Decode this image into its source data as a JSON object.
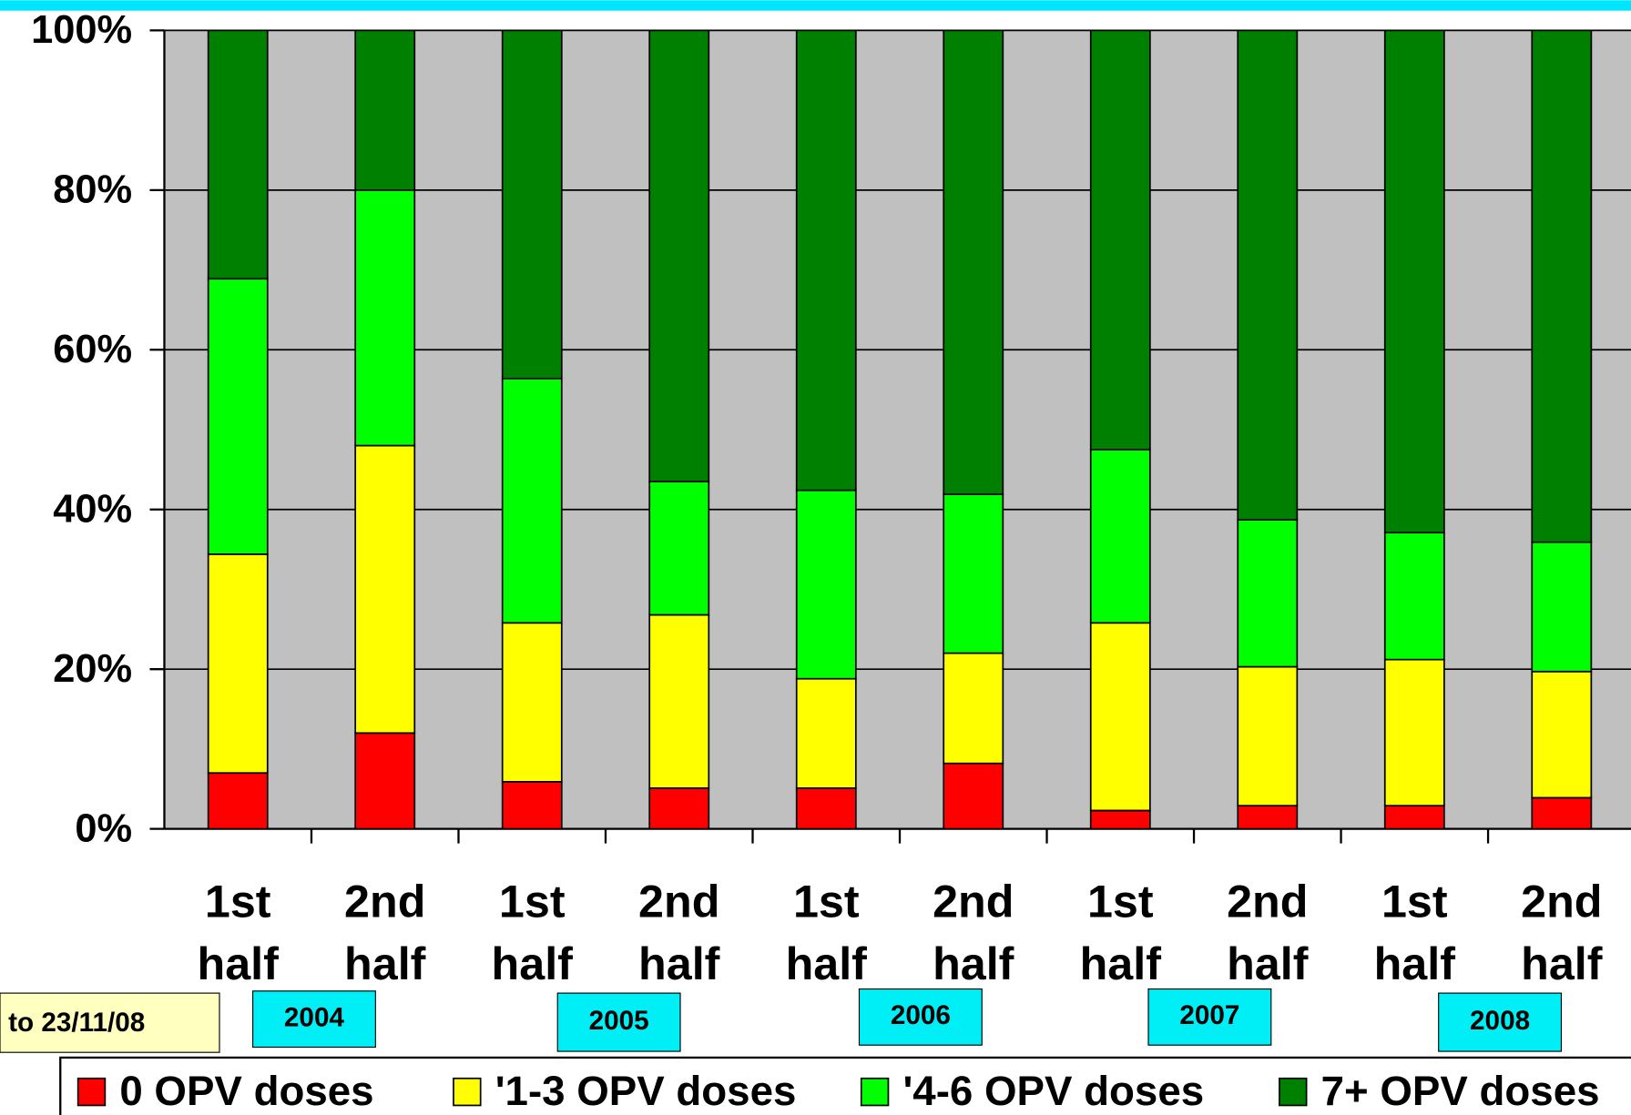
{
  "chart_data": {
    "type": "stacked_bar",
    "categories": [
      "1st half",
      "2nd half",
      "1st half",
      "2nd half",
      "1st half",
      "2nd half",
      "1st half",
      "2nd half",
      "1st half",
      "2nd half"
    ],
    "series": [
      {
        "name": "0 OPV doses",
        "color": "#ff0000",
        "values": [
          7,
          12,
          5.9,
          5.1,
          5.1,
          8.2,
          2.3,
          2.9,
          2.9,
          3.9
        ]
      },
      {
        "name": "'1-3 OPV doses",
        "color": "#ffff00",
        "values": [
          27.4,
          36,
          19.9,
          21.7,
          13.7,
          13.8,
          23.5,
          17.4,
          18.3,
          15.8
        ]
      },
      {
        "name": "'4-6 OPV doses",
        "color": "#00ff00",
        "values": [
          34.5,
          32,
          30.6,
          16.7,
          23.6,
          19.9,
          21.7,
          18.4,
          15.9,
          16.2
        ]
      },
      {
        "name": "7+ OPV doses",
        "color": "#008000",
        "values": [
          31.1,
          20,
          43.6,
          56.5,
          57.6,
          58.1,
          52.5,
          61.3,
          62.9,
          64.1
        ]
      }
    ],
    "ylim": [
      0,
      100
    ],
    "yticks": [
      {
        "value": 0,
        "label": "0%"
      },
      {
        "value": 20,
        "label": "20%"
      },
      {
        "value": 40,
        "label": "40%"
      },
      {
        "value": 60,
        "label": "60%"
      },
      {
        "value": 80,
        "label": "80%"
      },
      {
        "value": 100,
        "label": "100%"
      }
    ],
    "grid": true,
    "note": "to 23/11/08",
    "year_labels": [
      "2004",
      "2005",
      "2006",
      "2007",
      "2008"
    ]
  }
}
